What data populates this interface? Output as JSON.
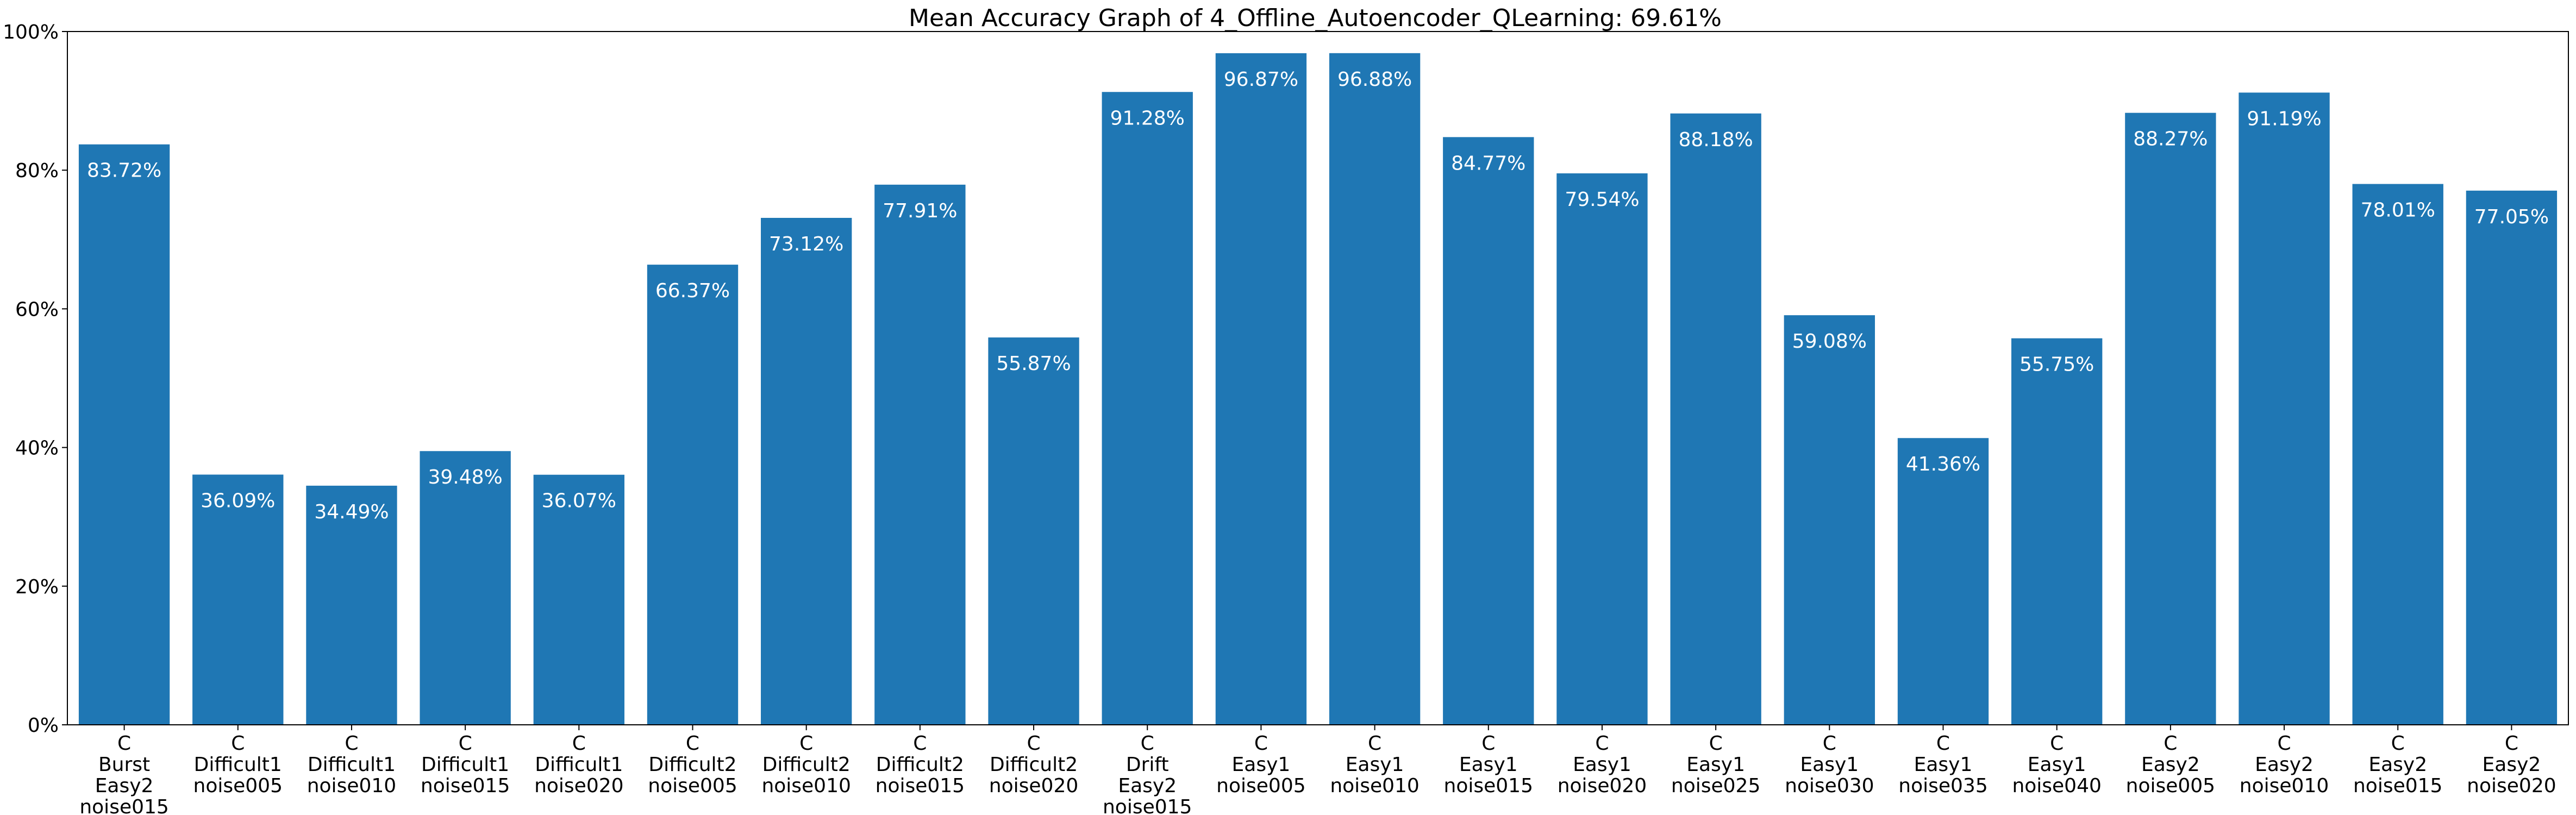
{
  "chart_data": {
    "type": "bar",
    "title": "Mean Accuracy Graph of 4_Offline_Autoencoder_QLearning: 69.61%",
    "xlabel": "",
    "ylabel": "",
    "ylim": [
      0,
      100
    ],
    "yticks": [
      "0%",
      "20%",
      "40%",
      "60%",
      "80%",
      "100%"
    ],
    "grid": false,
    "bar_color": "#1f77b4",
    "label_color": "#ffffff",
    "categories": [
      [
        "C",
        "Burst",
        "Easy2",
        "noise015"
      ],
      [
        "C",
        "Difficult1",
        "noise005"
      ],
      [
        "C",
        "Difficult1",
        "noise010"
      ],
      [
        "C",
        "Difficult1",
        "noise015"
      ],
      [
        "C",
        "Difficult1",
        "noise020"
      ],
      [
        "C",
        "Difficult2",
        "noise005"
      ],
      [
        "C",
        "Difficult2",
        "noise010"
      ],
      [
        "C",
        "Difficult2",
        "noise015"
      ],
      [
        "C",
        "Difficult2",
        "noise020"
      ],
      [
        "C",
        "Drift",
        "Easy2",
        "noise015"
      ],
      [
        "C",
        "Easy1",
        "noise005"
      ],
      [
        "C",
        "Easy1",
        "noise010"
      ],
      [
        "C",
        "Easy1",
        "noise015"
      ],
      [
        "C",
        "Easy1",
        "noise020"
      ],
      [
        "C",
        "Easy1",
        "noise025"
      ],
      [
        "C",
        "Easy1",
        "noise030"
      ],
      [
        "C",
        "Easy1",
        "noise035"
      ],
      [
        "C",
        "Easy1",
        "noise040"
      ],
      [
        "C",
        "Easy2",
        "noise005"
      ],
      [
        "C",
        "Easy2",
        "noise010"
      ],
      [
        "C",
        "Easy2",
        "noise015"
      ],
      [
        "C",
        "Easy2",
        "noise020"
      ]
    ],
    "values": [
      83.72,
      36.09,
      34.49,
      39.48,
      36.07,
      66.37,
      73.12,
      77.91,
      55.87,
      91.28,
      96.87,
      96.88,
      84.77,
      79.54,
      88.18,
      59.08,
      41.36,
      55.75,
      88.27,
      91.19,
      78.01,
      77.05
    ],
    "value_labels": [
      "83.72%",
      "36.09%",
      "34.49%",
      "39.48%",
      "36.07%",
      "66.37%",
      "73.12%",
      "77.91%",
      "55.87%",
      "91.28%",
      "96.87%",
      "96.88%",
      "84.77%",
      "79.54%",
      "88.18%",
      "59.08%",
      "41.36%",
      "55.75%",
      "88.27%",
      "91.19%",
      "78.01%",
      "77.05%"
    ]
  }
}
